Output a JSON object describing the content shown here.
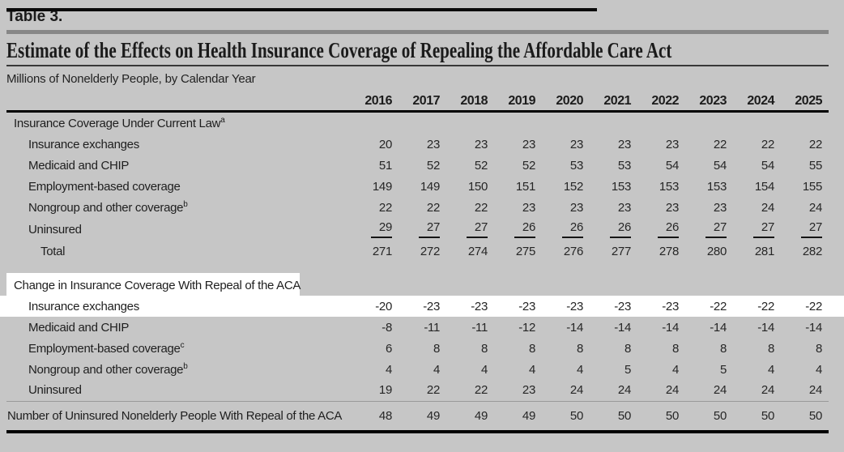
{
  "colors": {
    "background": "#c6c6c6",
    "highlight": "#ffffff",
    "text": "#1b1b1b",
    "rule_gray": "#878787"
  },
  "page": {
    "table_label": "Table 3.",
    "title": "Estimate of the Effects on Health Insurance Coverage of Repealing the Affordable Care Act",
    "subtitle": "Millions of Nonelderly People, by Calendar Year"
  },
  "chart_data": {
    "type": "table",
    "years": [
      "2016",
      "2017",
      "2018",
      "2019",
      "2020",
      "2021",
      "2022",
      "2023",
      "2024",
      "2025"
    ],
    "sections": [
      {
        "header": "Insurance Coverage Under Current Law",
        "header_footnote": "a",
        "highlight": false,
        "rows": [
          {
            "label": "Insurance exchanges",
            "footnote": "",
            "values": [
              20,
              23,
              23,
              23,
              23,
              23,
              23,
              22,
              22,
              22
            ]
          },
          {
            "label": "Medicaid and CHIP",
            "footnote": "",
            "values": [
              51,
              52,
              52,
              52,
              53,
              53,
              54,
              54,
              54,
              55
            ]
          },
          {
            "label": "Employment-based coverage",
            "footnote": "",
            "values": [
              149,
              149,
              150,
              151,
              152,
              153,
              153,
              153,
              154,
              155
            ]
          },
          {
            "label": "Nongroup and other coverage",
            "footnote": "b",
            "values": [
              22,
              22,
              22,
              23,
              23,
              23,
              23,
              23,
              24,
              24
            ]
          },
          {
            "label": "Uninsured",
            "footnote": "",
            "underline": true,
            "values": [
              29,
              27,
              27,
              26,
              26,
              26,
              26,
              27,
              27,
              27
            ]
          },
          {
            "label": "Total",
            "footnote": "",
            "total": true,
            "values": [
              271,
              272,
              274,
              275,
              276,
              277,
              278,
              280,
              281,
              282
            ]
          }
        ]
      },
      {
        "header": "Change in Insurance Coverage With Repeal of the ACA",
        "header_footnote": "",
        "highlight": true,
        "rows": [
          {
            "label": "Insurance exchanges",
            "footnote": "",
            "highlight": true,
            "values": [
              -20,
              -23,
              -23,
              -23,
              -23,
              -23,
              -23,
              -22,
              -22,
              -22
            ]
          },
          {
            "label": "Medicaid and CHIP",
            "footnote": "",
            "values": [
              -8,
              -11,
              -11,
              -12,
              -14,
              -14,
              -14,
              -14,
              -14,
              -14
            ]
          },
          {
            "label": "Employment-based coverage",
            "footnote": "c",
            "values": [
              6,
              8,
              8,
              8,
              8,
              8,
              8,
              8,
              8,
              8
            ]
          },
          {
            "label": "Nongroup and other coverage",
            "footnote": "b",
            "values": [
              4,
              4,
              4,
              4,
              4,
              5,
              4,
              5,
              4,
              4
            ]
          },
          {
            "label": "Uninsured",
            "footnote": "",
            "values": [
              19,
              22,
              22,
              23,
              24,
              24,
              24,
              24,
              24,
              24
            ]
          }
        ]
      }
    ],
    "footer": {
      "label": "Number of Uninsured Nonelderly People With Repeal of the ACA",
      "values": [
        48,
        49,
        49,
        49,
        50,
        50,
        50,
        50,
        50,
        50
      ]
    }
  }
}
